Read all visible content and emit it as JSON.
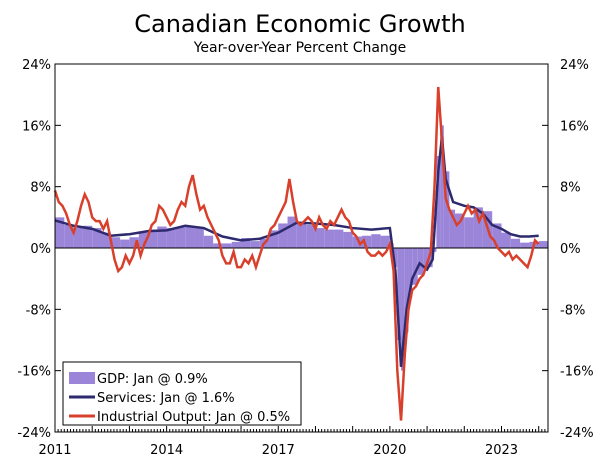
{
  "chart_data": {
    "type": "bar+line",
    "title": "Canadian Economic Growth",
    "subtitle": "Year-over-Year Percent Change",
    "ylim": [
      -24,
      24
    ],
    "yticks": [
      "24%",
      "16%",
      "8%",
      "0%",
      "-8%",
      "-16%",
      "-24%"
    ],
    "ytick_values": [
      24,
      16,
      8,
      0,
      -8,
      -16,
      -24
    ],
    "xlim": [
      2011,
      2024.25
    ],
    "xticks": [
      "2011",
      "2014",
      "2017",
      "2020",
      "2023"
    ],
    "xtick_values": [
      2011,
      2014,
      2017,
      2020,
      2023
    ],
    "series": [
      {
        "name": "GDP",
        "legend": "GDP: Jan @ 0.9%",
        "kind": "bar",
        "color": "#9a85d9",
        "points": [
          [
            2011.0,
            4.0
          ],
          [
            2011.25,
            3.0
          ],
          [
            2011.5,
            2.6
          ],
          [
            2011.75,
            2.9
          ],
          [
            2012.0,
            2.6
          ],
          [
            2012.25,
            2.0
          ],
          [
            2012.5,
            1.4
          ],
          [
            2012.75,
            1.1
          ],
          [
            2013.0,
            1.4
          ],
          [
            2013.25,
            2.0
          ],
          [
            2013.5,
            2.4
          ],
          [
            2013.75,
            2.8
          ],
          [
            2014.0,
            2.6
          ],
          [
            2014.25,
            2.7
          ],
          [
            2014.5,
            2.9
          ],
          [
            2014.75,
            2.6
          ],
          [
            2015.0,
            1.6
          ],
          [
            2015.25,
            0.6
          ],
          [
            2015.5,
            0.6
          ],
          [
            2015.75,
            0.8
          ],
          [
            2016.0,
            1.3
          ],
          [
            2016.25,
            0.9
          ],
          [
            2016.5,
            1.2
          ],
          [
            2016.75,
            2.3
          ],
          [
            2017.0,
            3.2
          ],
          [
            2017.25,
            4.1
          ],
          [
            2017.5,
            3.4
          ],
          [
            2017.75,
            3.0
          ],
          [
            2018.0,
            2.6
          ],
          [
            2018.25,
            2.4
          ],
          [
            2018.5,
            2.4
          ],
          [
            2018.75,
            2.1
          ],
          [
            2019.0,
            1.5
          ],
          [
            2019.25,
            1.6
          ],
          [
            2019.5,
            1.8
          ],
          [
            2019.75,
            1.6
          ],
          [
            2020.0,
            0.6
          ],
          [
            2020.1,
            -2.5
          ],
          [
            2020.2,
            -12.0
          ],
          [
            2020.3,
            -16.0
          ],
          [
            2020.4,
            -11.0
          ],
          [
            2020.5,
            -6.5
          ],
          [
            2020.6,
            -4.8
          ],
          [
            2020.75,
            -3.5
          ],
          [
            2020.9,
            -3.0
          ],
          [
            2021.0,
            -2.5
          ],
          [
            2021.15,
            -0.5
          ],
          [
            2021.25,
            12.0
          ],
          [
            2021.35,
            16.0
          ],
          [
            2021.45,
            10.0
          ],
          [
            2021.6,
            5.0
          ],
          [
            2021.75,
            4.5
          ],
          [
            2022.0,
            4.0
          ],
          [
            2022.25,
            5.3
          ],
          [
            2022.5,
            4.8
          ],
          [
            2022.75,
            3.2
          ],
          [
            2023.0,
            2.0
          ],
          [
            2023.25,
            1.2
          ],
          [
            2023.5,
            0.7
          ],
          [
            2023.75,
            0.8
          ],
          [
            2024.0,
            0.9
          ]
        ]
      },
      {
        "name": "Services",
        "legend": "Services: Jan @ 1.6%",
        "kind": "line",
        "color": "#2d2a6e",
        "points": [
          [
            2011.0,
            3.6
          ],
          [
            2011.5,
            2.9
          ],
          [
            2012.0,
            2.5
          ],
          [
            2012.5,
            1.6
          ],
          [
            2013.0,
            1.8
          ],
          [
            2013.5,
            2.2
          ],
          [
            2014.0,
            2.3
          ],
          [
            2014.5,
            2.9
          ],
          [
            2015.0,
            2.6
          ],
          [
            2015.5,
            1.5
          ],
          [
            2016.0,
            1.0
          ],
          [
            2016.5,
            1.2
          ],
          [
            2017.0,
            2.0
          ],
          [
            2017.5,
            3.3
          ],
          [
            2018.0,
            3.2
          ],
          [
            2018.5,
            3.0
          ],
          [
            2019.0,
            2.6
          ],
          [
            2019.5,
            2.4
          ],
          [
            2020.0,
            2.6
          ],
          [
            2020.15,
            -3.0
          ],
          [
            2020.3,
            -15.5
          ],
          [
            2020.45,
            -8.0
          ],
          [
            2020.6,
            -4.0
          ],
          [
            2020.8,
            -2.0
          ],
          [
            2021.0,
            -2.8
          ],
          [
            2021.15,
            -1.5
          ],
          [
            2021.3,
            10.0
          ],
          [
            2021.4,
            14.5
          ],
          [
            2021.5,
            9.0
          ],
          [
            2021.7,
            6.0
          ],
          [
            2022.0,
            5.5
          ],
          [
            2022.25,
            5.3
          ],
          [
            2022.5,
            4.5
          ],
          [
            2022.75,
            3.0
          ],
          [
            2023.0,
            2.5
          ],
          [
            2023.25,
            1.8
          ],
          [
            2023.5,
            1.5
          ],
          [
            2023.75,
            1.5
          ],
          [
            2024.0,
            1.6
          ]
        ]
      },
      {
        "name": "Industrial Output",
        "legend": "Industrial Output: Jan @ 0.5%",
        "kind": "line",
        "color": "#d9402b",
        "points": [
          [
            2011.0,
            7.5
          ],
          [
            2011.1,
            6.0
          ],
          [
            2011.2,
            5.5
          ],
          [
            2011.3,
            4.5
          ],
          [
            2011.4,
            3.0
          ],
          [
            2011.5,
            2.0
          ],
          [
            2011.6,
            3.5
          ],
          [
            2011.7,
            5.5
          ],
          [
            2011.8,
            7.0
          ],
          [
            2011.9,
            6.0
          ],
          [
            2012.0,
            4.0
          ],
          [
            2012.1,
            3.5
          ],
          [
            2012.2,
            3.5
          ],
          [
            2012.3,
            2.5
          ],
          [
            2012.4,
            3.5
          ],
          [
            2012.5,
            1.0
          ],
          [
            2012.6,
            -1.5
          ],
          [
            2012.7,
            -3.0
          ],
          [
            2012.8,
            -2.5
          ],
          [
            2012.9,
            -1.0
          ],
          [
            2013.0,
            -2.0
          ],
          [
            2013.1,
            -1.0
          ],
          [
            2013.2,
            1.0
          ],
          [
            2013.3,
            -1.0
          ],
          [
            2013.4,
            0.5
          ],
          [
            2013.5,
            1.5
          ],
          [
            2013.6,
            3.0
          ],
          [
            2013.7,
            3.5
          ],
          [
            2013.8,
            5.5
          ],
          [
            2013.9,
            5.0
          ],
          [
            2014.0,
            4.0
          ],
          [
            2014.1,
            3.0
          ],
          [
            2014.2,
            3.5
          ],
          [
            2014.3,
            5.0
          ],
          [
            2014.4,
            6.0
          ],
          [
            2014.5,
            5.5
          ],
          [
            2014.6,
            8.0
          ],
          [
            2014.7,
            9.5
          ],
          [
            2014.8,
            7.0
          ],
          [
            2014.9,
            5.0
          ],
          [
            2015.0,
            5.5
          ],
          [
            2015.1,
            4.0
          ],
          [
            2015.2,
            3.0
          ],
          [
            2015.3,
            2.0
          ],
          [
            2015.4,
            1.0
          ],
          [
            2015.5,
            -1.0
          ],
          [
            2015.6,
            -2.0
          ],
          [
            2015.7,
            -2.0
          ],
          [
            2015.8,
            -0.5
          ],
          [
            2015.9,
            -2.5
          ],
          [
            2016.0,
            -2.5
          ],
          [
            2016.1,
            -1.5
          ],
          [
            2016.2,
            -2.0
          ],
          [
            2016.3,
            -1.0
          ],
          [
            2016.4,
            -2.5
          ],
          [
            2016.5,
            -1.0
          ],
          [
            2016.6,
            0.5
          ],
          [
            2016.7,
            1.0
          ],
          [
            2016.8,
            2.5
          ],
          [
            2016.9,
            3.0
          ],
          [
            2017.0,
            4.0
          ],
          [
            2017.1,
            5.0
          ],
          [
            2017.2,
            6.0
          ],
          [
            2017.3,
            9.0
          ],
          [
            2017.4,
            6.0
          ],
          [
            2017.5,
            3.5
          ],
          [
            2017.6,
            3.0
          ],
          [
            2017.7,
            3.5
          ],
          [
            2017.8,
            4.0
          ],
          [
            2017.9,
            3.5
          ],
          [
            2018.0,
            2.5
          ],
          [
            2018.1,
            4.0
          ],
          [
            2018.2,
            3.0
          ],
          [
            2018.3,
            2.5
          ],
          [
            2018.4,
            3.5
          ],
          [
            2018.5,
            3.0
          ],
          [
            2018.6,
            4.0
          ],
          [
            2018.7,
            5.0
          ],
          [
            2018.8,
            4.0
          ],
          [
            2018.9,
            3.5
          ],
          [
            2019.0,
            2.0
          ],
          [
            2019.1,
            1.5
          ],
          [
            2019.2,
            0.5
          ],
          [
            2019.3,
            1.0
          ],
          [
            2019.4,
            -0.5
          ],
          [
            2019.5,
            -1.0
          ],
          [
            2019.6,
            -1.0
          ],
          [
            2019.7,
            -0.5
          ],
          [
            2019.8,
            -1.0
          ],
          [
            2019.9,
            -0.5
          ],
          [
            2020.0,
            0.5
          ],
          [
            2020.1,
            -3.0
          ],
          [
            2020.2,
            -16.0
          ],
          [
            2020.3,
            -22.5
          ],
          [
            2020.4,
            -14.0
          ],
          [
            2020.5,
            -8.0
          ],
          [
            2020.6,
            -5.5
          ],
          [
            2020.7,
            -5.0
          ],
          [
            2020.8,
            -4.0
          ],
          [
            2020.9,
            -3.5
          ],
          [
            2021.0,
            -2.0
          ],
          [
            2021.1,
            -0.5
          ],
          [
            2021.2,
            8.0
          ],
          [
            2021.3,
            21.0
          ],
          [
            2021.4,
            14.0
          ],
          [
            2021.5,
            6.5
          ],
          [
            2021.6,
            5.0
          ],
          [
            2021.7,
            4.0
          ],
          [
            2021.8,
            3.0
          ],
          [
            2021.9,
            3.5
          ],
          [
            2022.0,
            4.5
          ],
          [
            2022.1,
            5.5
          ],
          [
            2022.2,
            4.5
          ],
          [
            2022.3,
            5.0
          ],
          [
            2022.4,
            3.5
          ],
          [
            2022.5,
            4.5
          ],
          [
            2022.6,
            3.0
          ],
          [
            2022.7,
            1.5
          ],
          [
            2022.8,
            1.0
          ],
          [
            2022.9,
            0.0
          ],
          [
            2023.0,
            -0.5
          ],
          [
            2023.1,
            -1.0
          ],
          [
            2023.2,
            -0.5
          ],
          [
            2023.3,
            -1.5
          ],
          [
            2023.4,
            -1.0
          ],
          [
            2023.5,
            -1.5
          ],
          [
            2023.6,
            -2.0
          ],
          [
            2023.7,
            -2.5
          ],
          [
            2023.8,
            -1.0
          ],
          [
            2023.9,
            1.0
          ],
          [
            2024.0,
            0.5
          ]
        ]
      }
    ]
  }
}
